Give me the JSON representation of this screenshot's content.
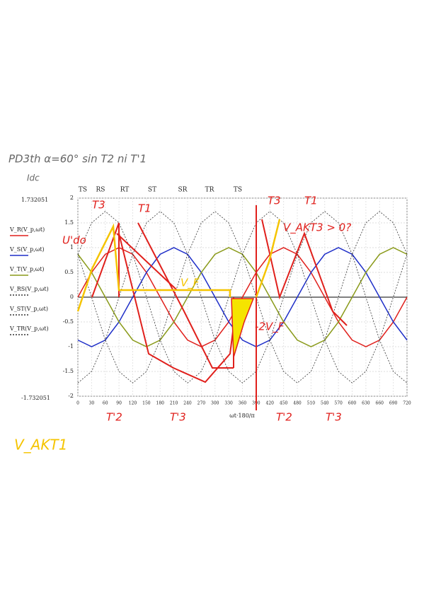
{
  "chart_data": {
    "type": "line",
    "title": "PD3th α=60° sin T2 ni T'1",
    "subtitle": "Idc",
    "x_label": "ωt·180/π",
    "y_range_labels": [
      "1.732051",
      "-1.732051"
    ],
    "phase_labels": [
      "TS",
      "RS",
      "RT",
      "ST",
      "SR",
      "TR",
      "TS"
    ],
    "annotations": [
      "U'do",
      "V_F",
      "-2V_F",
      "V_AKT3 > 0?",
      "T3",
      "T1",
      "T3",
      "T1",
      "T'2",
      "T'3",
      "T'2",
      "T'3",
      "V_AKT1"
    ],
    "x": [
      0,
      30,
      60,
      90,
      120,
      150,
      180,
      210,
      240,
      270,
      300,
      330,
      360,
      390,
      420,
      450,
      480,
      510,
      540,
      570,
      600,
      630,
      660,
      690,
      720
    ],
    "xlim": [
      0,
      720
    ],
    "xticks": [
      0,
      30,
      60,
      90,
      120,
      150,
      180,
      210,
      240,
      270,
      300,
      330,
      360,
      390,
      420,
      450,
      480,
      510,
      540,
      570,
      600,
      630,
      660,
      690,
      720
    ],
    "ylim": [
      -2,
      2
    ],
    "yticks": [
      2,
      1.5,
      1,
      0.5,
      0,
      -0.5,
      -1,
      -1.5,
      -2
    ],
    "grid": true,
    "series": [
      {
        "name": "V_R(V_p,ωt)",
        "color": "#e0201c",
        "dash": false,
        "values": [
          0,
          0.5,
          0.866,
          1,
          0.866,
          0.5,
          0,
          -0.5,
          -0.866,
          -1,
          -0.866,
          -0.5,
          0,
          0.5,
          0.866,
          1,
          0.866,
          0.5,
          0,
          -0.5,
          -0.866,
          -1,
          -0.866,
          -0.5,
          0
        ]
      },
      {
        "name": "V_S(V_p,ωt)",
        "color": "#1f2fc8",
        "dash": false,
        "values": [
          -0.866,
          -1,
          -0.866,
          -0.5,
          0,
          0.5,
          0.866,
          1,
          0.866,
          0.5,
          0,
          -0.5,
          -0.866,
          -1,
          -0.866,
          -0.5,
          0,
          0.5,
          0.866,
          1,
          0.866,
          0.5,
          0,
          -0.5,
          -0.866
        ]
      },
      {
        "name": "V_T(V_p,ωt)",
        "color": "#8a9a1a",
        "dash": false,
        "values": [
          0.866,
          0.5,
          0,
          -0.5,
          -0.866,
          -1,
          -0.866,
          -0.5,
          0,
          0.5,
          0.866,
          1,
          0.866,
          0.5,
          0,
          -0.5,
          -0.866,
          -1,
          -0.866,
          -0.5,
          0,
          0.5,
          0.866,
          1,
          0.866
        ]
      },
      {
        "name": "V_RS(V_p,ωt)",
        "color": "#333333",
        "dash": true,
        "values": [
          0.866,
          1.5,
          1.732,
          1.5,
          0.866,
          0,
          -0.866,
          -1.5,
          -1.732,
          -1.5,
          -0.866,
          0,
          0.866,
          1.5,
          1.732,
          1.5,
          0.866,
          0,
          -0.866,
          -1.5,
          -1.732,
          -1.5,
          -0.866,
          0,
          0.866
        ]
      },
      {
        "name": "V_ST(V_p,ωt)",
        "color": "#333333",
        "dash": true,
        "values": [
          -1.732,
          -1.5,
          -0.866,
          0,
          0.866,
          1.5,
          1.732,
          1.5,
          0.866,
          0,
          -0.866,
          -1.5,
          -1.732,
          -1.5,
          -0.866,
          0,
          0.866,
          1.5,
          1.732,
          1.5,
          0.866,
          0,
          -0.866,
          -1.5,
          -1.732
        ]
      },
      {
        "name": "V_TR(V_p,ωt)",
        "color": "#333333",
        "dash": true,
        "values": [
          0.866,
          0,
          -0.866,
          -1.5,
          -1.732,
          -1.5,
          -0.866,
          0,
          0.866,
          1.5,
          1.732,
          1.5,
          0.866,
          0,
          -0.866,
          -1.5,
          -1.732,
          -1.5,
          -0.866,
          0,
          0.866,
          1.5,
          1.732,
          1.5,
          0.866
        ]
      }
    ]
  }
}
